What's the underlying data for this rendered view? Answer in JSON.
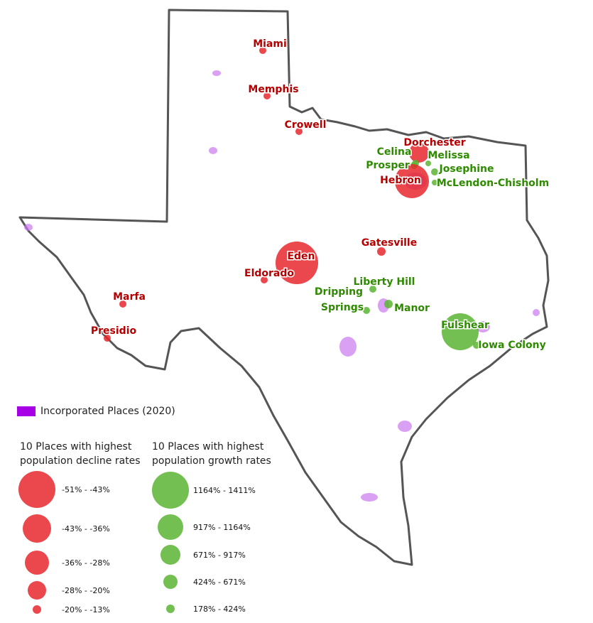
{
  "places": [
    {
      "name": [
        "Miami"
      ],
      "group": "decline"
    },
    {
      "name": [
        "Memphis"
      ],
      "group": "decline"
    },
    {
      "name": [
        "Crowell"
      ],
      "group": "decline"
    },
    {
      "name": [
        "Dorchester"
      ],
      "group": "decline"
    },
    {
      "name": [
        "Celina"
      ],
      "group": "growth"
    },
    {
      "name": [
        "Melissa"
      ],
      "group": "growth"
    },
    {
      "name": [
        "Prosper"
      ],
      "group": "growth"
    },
    {
      "name": [
        "Josephine"
      ],
      "group": "growth"
    },
    {
      "name": [
        "Hebron"
      ],
      "group": "decline"
    },
    {
      "name": [
        "McLendon-Chisholm"
      ],
      "group": "growth"
    },
    {
      "name": [
        "Gatesville"
      ],
      "group": "decline"
    },
    {
      "name": [
        "Eden"
      ],
      "group": "decline"
    },
    {
      "name": [
        "Eldorado"
      ],
      "group": "decline"
    },
    {
      "name": [
        "Marfa"
      ],
      "group": "decline"
    },
    {
      "name": [
        "Presidio"
      ],
      "group": "decline"
    },
    {
      "name": [
        "Liberty Hill"
      ],
      "group": "growth"
    },
    {
      "name": [
        "Dripping",
        "Springs"
      ],
      "group": "growth"
    },
    {
      "name": [
        "Manor"
      ],
      "group": "growth"
    },
    {
      "name": [
        "Fulshear"
      ],
      "group": "growth"
    },
    {
      "name": [
        "Iowa Colony"
      ],
      "group": "growth"
    }
  ],
  "legend": {
    "incorporated": "Incorporated Places (2020)",
    "decline": {
      "title": [
        "10 Places with highest",
        "population decline rates"
      ],
      "classes": [
        "-51% - -43%",
        "-43% - -36%",
        "-36% - -28%",
        "-28% - -20%",
        "-20% - -13%"
      ]
    },
    "growth": {
      "title": [
        "10 Places with highest",
        "population growth rates"
      ],
      "classes": [
        "1164% - 1411%",
        "917% - 1164%",
        "671% - 917%",
        "424% - 671%",
        "178% - 424%"
      ]
    }
  }
}
